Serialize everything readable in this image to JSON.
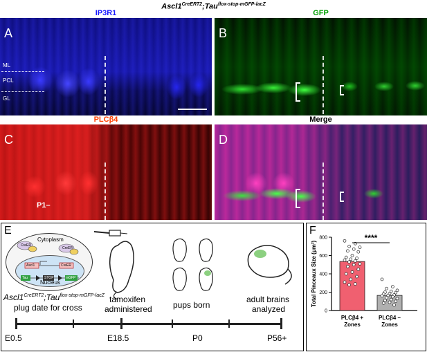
{
  "figure_title": {
    "gene1": "Ascl1",
    "sup1": "CreERT2",
    "sep": ";",
    "gene2": "Tau",
    "sup2": "flox-stop-mGFP-lacZ"
  },
  "panels": [
    {
      "letter": "A",
      "label": "IP3R1",
      "color": "#1a1aff"
    },
    {
      "letter": "B",
      "label": "GFP",
      "color": "#00a000"
    },
    {
      "letter": "C",
      "label": "PLCβ4",
      "color": "#ff4000"
    },
    {
      "letter": "D",
      "label": "Merge",
      "color": "#000000"
    }
  ],
  "layers": {
    "ml": "ML",
    "pcl": "PCL",
    "gl": "GL"
  },
  "zone_label": "P1–",
  "timeline": {
    "letter": "E",
    "cytoplasm": "Cytoplasm",
    "nucleus": "Nucleus",
    "creer": "CreER",
    "ascl1": "Ascl1",
    "tam": "TAM",
    "tau": "Tau",
    "stop": "STOP",
    "mgfp": "mGFP",
    "genotype_a": "Ascl1",
    "genotype_a_sup": "CreERT2",
    "genotype_sep": ";",
    "genotype_b": "Tau",
    "genotype_b_sup": "flox-stop-mGFP-lacZ",
    "plug": "plug date for cross",
    "tam1": "tamoxifen",
    "tam2": "administered",
    "pups": "pups born",
    "adult1": "adult brains",
    "adult2": "analyzed",
    "ticks": [
      "E0.5",
      "E18.5",
      "P0",
      "P56+"
    ]
  },
  "chart_data": {
    "type": "bar",
    "letter": "F",
    "categories": [
      "PLCβ4 + Zones",
      "PLCβ4 – Zones"
    ],
    "category_lines": [
      [
        "PLCβ4 +",
        "Zones"
      ],
      [
        "PLCβ4 –",
        "Zones"
      ]
    ],
    "values": [
      535,
      165
    ],
    "bar_colors": [
      "#f06070",
      "#b0b0b0"
    ],
    "ylabel": "Total Pinceaux Size (μm²)",
    "ylim": [
      0,
      800
    ],
    "yticks": [
      0,
      200,
      400,
      600,
      800
    ],
    "significance": "****",
    "points": [
      [
        760,
        730,
        700,
        690,
        670,
        650,
        640,
        600,
        580,
        570,
        560,
        550,
        540,
        530,
        510,
        500,
        480,
        450,
        420,
        400,
        370,
        340,
        310,
        290,
        280
      ],
      [
        340,
        260,
        240,
        220,
        210,
        200,
        195,
        185,
        180,
        170,
        165,
        160,
        150,
        140,
        130,
        120,
        110,
        100,
        90,
        80,
        60
      ]
    ]
  }
}
